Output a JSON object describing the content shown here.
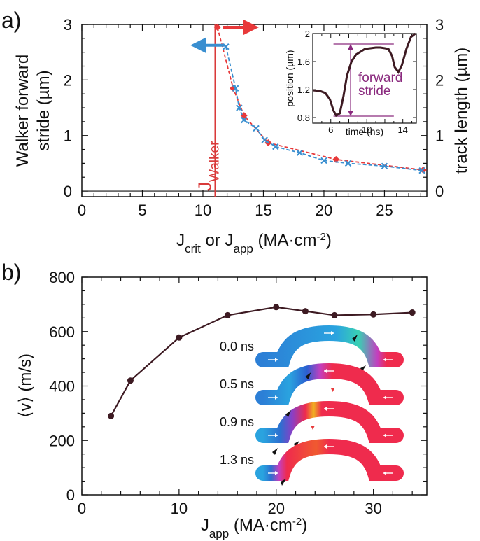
{
  "panels": {
    "a_label": "a)",
    "b_label": "b)"
  },
  "colors": {
    "track": "#e8393a",
    "stride": "#3a8fd0",
    "jline": "#d93a3a",
    "velocity": "#3d1a22",
    "inset": "#3d1a22",
    "inset_accent": "#8a2a7e"
  },
  "chart_data": [
    {
      "type": "line",
      "panel": "a",
      "xlabel_parts": [
        "J",
        "crit",
        " or J",
        "app",
        " (MA·cm",
        "-2",
        ")"
      ],
      "ylabel_left_lines": [
        "Walker forward",
        "stride (µm)"
      ],
      "ylabel_right": "track length (µm)",
      "xlim": [
        0,
        28.5
      ],
      "ylim": [
        -0.1,
        3
      ],
      "x_ticks": [
        0,
        5,
        10,
        15,
        20,
        25
      ],
      "y_ticks_left": [
        0,
        1,
        2,
        3
      ],
      "y_ticks_right": [
        0,
        1,
        2,
        3
      ],
      "walker_threshold": {
        "x": 11,
        "label_main": "J",
        "label_sub": "Walker"
      },
      "arrows": [
        {
          "points_to": "left",
          "series": "stride"
        },
        {
          "points_to": "right",
          "series": "track length"
        }
      ],
      "series": [
        {
          "key": "track",
          "marker": "diamond",
          "axis": "right",
          "x": [
            11.2,
            12.5,
            13.4,
            15.4,
            21.0,
            28.2
          ],
          "y": [
            2.95,
            1.85,
            1.36,
            0.87,
            0.57,
            0.38
          ]
        },
        {
          "key": "stride",
          "marker": "x",
          "axis": "left",
          "x": [
            11.9,
            12.7,
            13.0,
            13.4,
            14.4,
            15.1,
            16.0,
            18.0,
            20.0,
            22.0,
            25.0,
            28.1
          ],
          "y": [
            2.6,
            1.85,
            1.5,
            1.28,
            1.13,
            0.92,
            0.8,
            0.69,
            0.55,
            0.5,
            0.45,
            0.37
          ]
        }
      ],
      "inset": {
        "xlabel": "time (ns)",
        "ylabel": "position (µm)",
        "xlim": [
          4,
          15.5
        ],
        "ylim": [
          0.72,
          2.0
        ],
        "x_ticks": [
          6,
          10,
          14
        ],
        "y_ticks": [
          "0.8",
          "1.2",
          "1.6",
          "2"
        ],
        "annotation_lines": [
          "forward",
          "stride"
        ],
        "stride_levels": [
          0.82,
          1.85
        ],
        "curve": {
          "x": [
            4.0,
            4.8,
            5.4,
            5.9,
            6.3,
            6.6,
            7.0,
            7.4,
            7.8,
            8.3,
            8.8,
            9.3,
            9.8,
            10.4,
            11.0,
            11.5,
            12.0,
            12.4,
            12.8,
            13.1,
            13.5,
            13.9,
            14.4,
            14.9,
            15.4
          ],
          "y": [
            1.19,
            1.18,
            1.15,
            1.06,
            0.9,
            0.83,
            0.86,
            1.1,
            1.4,
            1.6,
            1.7,
            1.74,
            1.78,
            1.79,
            1.8,
            1.8,
            1.79,
            1.78,
            1.68,
            1.52,
            1.45,
            1.55,
            1.78,
            1.95,
            2.05
          ]
        }
      }
    },
    {
      "type": "line",
      "panel": "b",
      "xlabel_parts": [
        "J",
        "app",
        " (MA·cm",
        "-2",
        ")"
      ],
      "ylabel": "⟨v⟩ (m/s)",
      "xlim": [
        0,
        35.5
      ],
      "ylim": [
        0,
        800
      ],
      "x_ticks": [
        0,
        10,
        20,
        30
      ],
      "y_ticks": [
        0,
        200,
        400,
        600,
        800
      ],
      "series": [
        {
          "key": "velocity",
          "marker": "circle",
          "x": [
            3,
            5,
            10,
            15,
            20,
            23,
            26,
            30,
            34
          ],
          "y": [
            290,
            420,
            578,
            660,
            690,
            675,
            660,
            663,
            670
          ]
        }
      ],
      "snapshots": [
        {
          "time": "0.0 ns",
          "wall": 0.7
        },
        {
          "time": "0.5 ns",
          "wall": 0.35
        },
        {
          "time": "0.9 ns",
          "wall": 0.2
        },
        {
          "time": "1.3 ns",
          "wall": 0.1
        }
      ]
    }
  ]
}
